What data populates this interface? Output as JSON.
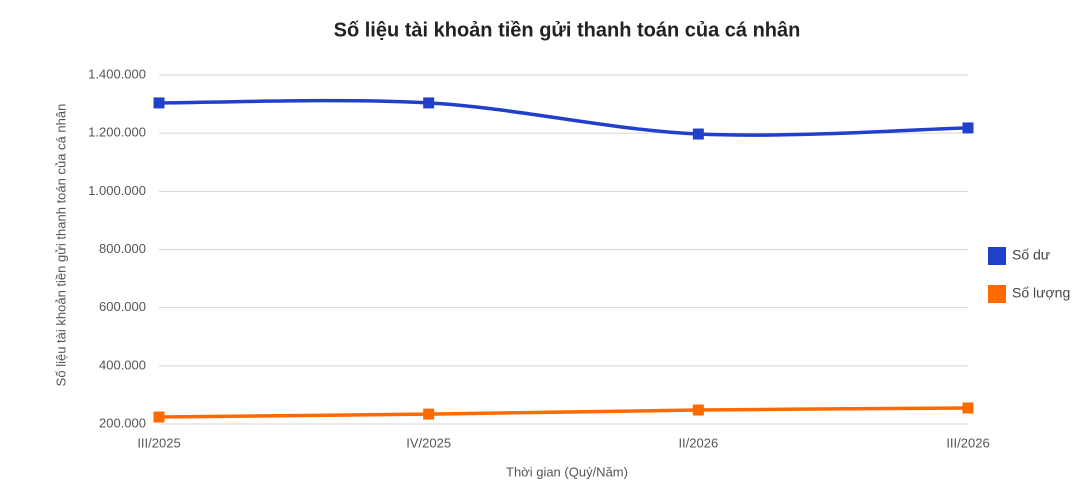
{
  "chart_data": {
    "type": "line",
    "title": "Số liệu tài khoản tiền gửi thanh toán của cá nhân",
    "x_label": "Thời gian (Quý/Năm)",
    "y_label": "Số liệu tài khoản tiền gửi thanh toán của cá nhân",
    "categories": [
      "III/2025",
      "IV/2025",
      "II/2026",
      "III/2026"
    ],
    "series": [
      {
        "name": "Số dư",
        "color": "#2040cc",
        "values": [
          1304000,
          1304000,
          1197000,
          1218000
        ]
      },
      {
        "name": "Số lượng",
        "color": "#ff6a00",
        "values": [
          224000,
          234000,
          248000,
          255000
        ]
      }
    ],
    "ylim": [
      200000,
      1400000
    ],
    "yticks": [
      {
        "value": 200000,
        "label": "200.000"
      },
      {
        "value": 400000,
        "label": "400.000"
      },
      {
        "value": 600000,
        "label": "600.000"
      },
      {
        "value": 800000,
        "label": "800.000"
      },
      {
        "value": 1000000,
        "label": "1.000.000"
      },
      {
        "value": 1200000,
        "label": "1.200.000"
      },
      {
        "value": 1400000,
        "label": "1.400.000"
      }
    ],
    "grid": true,
    "smooth": true,
    "legend": "right"
  }
}
